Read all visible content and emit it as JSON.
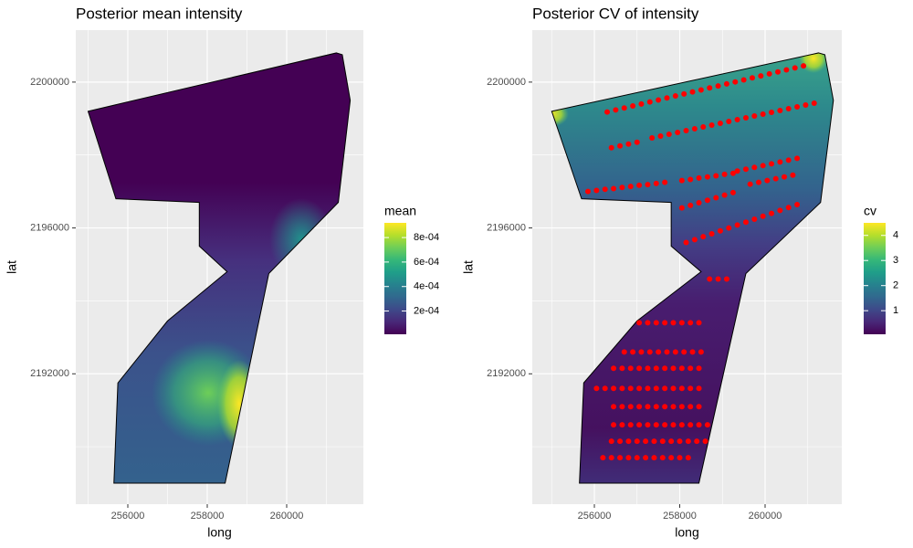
{
  "chart_data": [
    {
      "type": "map",
      "title": "Posterior mean intensity",
      "xlabel": "long",
      "ylabel": "lat",
      "xlim": [
        254690,
        261931
      ],
      "ylim": [
        2188425,
        2201425
      ],
      "xticks": [
        256000,
        258000,
        260000
      ],
      "yticks": [
        2192000,
        2196000,
        2200000
      ],
      "grid": true,
      "boundary": {
        "x": [
          255000,
          261250,
          261400,
          261600,
          261300,
          259550,
          258450,
          255650,
          255750,
          257000,
          258500,
          257800,
          257800,
          255700
        ],
        "y": [
          2199200,
          2200800,
          2200750,
          2199500,
          2196700,
          2194750,
          2189000,
          2189000,
          2191750,
          2193450,
          2194800,
          2195500,
          2196700,
          2196800
        ]
      },
      "legend": {
        "title": "mean",
        "lim": [
          1e-05,
          0.00092
        ],
        "ticks": [
          {
            "value": 0.0002,
            "label": "2e-04"
          },
          {
            "value": 0.0004,
            "label": "4e-04"
          },
          {
            "value": 0.0006,
            "label": "6e-04"
          },
          {
            "value": 0.0008,
            "label": "8e-04"
          }
        ],
        "colormap": [
          "#440154",
          "#482878",
          "#3e4989",
          "#31688e",
          "#26828e",
          "#1f9e89",
          "#35b779",
          "#6ece58",
          "#b5de2b",
          "#fde725"
        ]
      }
    },
    {
      "type": "map",
      "title": "Posterior CV of intensity",
      "xlabel": "long",
      "ylabel": "lat",
      "xlim": [
        254545,
        261797
      ],
      "ylim": [
        2188425,
        2201425
      ],
      "xticks": [
        256000,
        258000,
        260000
      ],
      "yticks": [
        2192000,
        2196000,
        2200000
      ],
      "grid": true,
      "boundary": {
        "x": [
          255000,
          261250,
          261400,
          261600,
          261300,
          259550,
          258450,
          255650,
          255750,
          257000,
          258500,
          257800,
          257800,
          255700
        ],
        "y": [
          2199200,
          2200800,
          2200750,
          2199500,
          2196700,
          2194750,
          2189000,
          2189000,
          2191750,
          2193450,
          2194800,
          2195500,
          2196700,
          2196800
        ]
      },
      "points": {
        "color": "#ff0000",
        "x": [
          256300,
          256500,
          256700,
          256900,
          257100,
          257300,
          257500,
          257700,
          257900,
          258100,
          258300,
          258500,
          258700,
          258900,
          259100,
          259300,
          259500,
          259700,
          259900,
          260100,
          260300,
          260500,
          260700,
          260900,
          256400,
          256600,
          256800,
          257000,
          257350,
          257550,
          257750,
          257950,
          258150,
          258350,
          258550,
          258750,
          258950,
          259150,
          259350,
          259550,
          259750,
          259950,
          260150,
          260350,
          260550,
          260750,
          260950,
          261150,
          255850,
          256050,
          256250,
          256450,
          256650,
          256850,
          257050,
          257250,
          257450,
          257650,
          258050,
          258250,
          258450,
          258650,
          258850,
          259050,
          259250,
          259350,
          259550,
          259750,
          259950,
          260150,
          260350,
          260550,
          260750,
          258050,
          258250,
          258450,
          258650,
          258850,
          259050,
          259250,
          259650,
          259850,
          260050,
          260250,
          260450,
          260650,
          258150,
          258350,
          258550,
          258750,
          258950,
          259150,
          259350,
          259550,
          259750,
          259950,
          260150,
          260350,
          260550,
          260750,
          258700,
          258900,
          259100,
          257050,
          257250,
          257450,
          257650,
          257850,
          258050,
          258250,
          258450,
          256700,
          256900,
          257100,
          257300,
          257500,
          257700,
          257900,
          258100,
          258300,
          258500,
          256450,
          256650,
          256850,
          257050,
          257250,
          257450,
          257650,
          257850,
          258050,
          258250,
          258450,
          256050,
          256250,
          256450,
          256650,
          256850,
          257050,
          257250,
          257450,
          257650,
          257850,
          258050,
          258250,
          258450,
          256450,
          256650,
          256850,
          257050,
          257250,
          257450,
          257650,
          257850,
          258050,
          258250,
          258450,
          256450,
          256650,
          256850,
          257050,
          257250,
          257450,
          257650,
          257850,
          258050,
          258250,
          258450,
          258650,
          256400,
          256600,
          256800,
          257000,
          257200,
          257400,
          257600,
          257800,
          258000,
          258200,
          258400,
          258600,
          256200,
          256400,
          256600,
          256800,
          257000,
          257200,
          257400,
          257600,
          257800,
          258000,
          258200
        ],
        "y": [
          2199180,
          2199235,
          2199290,
          2199345,
          2199400,
          2199455,
          2199510,
          2199565,
          2199620,
          2199675,
          2199730,
          2199785,
          2199840,
          2199895,
          2199950,
          2200005,
          2200060,
          2200115,
          2200170,
          2200225,
          2200280,
          2200335,
          2200390,
          2200445,
          2198200,
          2198250,
          2198300,
          2198350,
          2198470,
          2198520,
          2198570,
          2198620,
          2198670,
          2198720,
          2198770,
          2198820,
          2198870,
          2198920,
          2198970,
          2199020,
          2199070,
          2199120,
          2199170,
          2199220,
          2199270,
          2199320,
          2199370,
          2199420,
          2197000,
          2197030,
          2197060,
          2197080,
          2197110,
          2197140,
          2197170,
          2197190,
          2197220,
          2197250,
          2197300,
          2197330,
          2197370,
          2197400,
          2197430,
          2197470,
          2197500,
          2197560,
          2197610,
          2197660,
          2197710,
          2197760,
          2197810,
          2197860,
          2197910,
          2196550,
          2196620,
          2196690,
          2196760,
          2196830,
          2196900,
          2196970,
          2197200,
          2197250,
          2197300,
          2197350,
          2197400,
          2197450,
          2195600,
          2195680,
          2195760,
          2195840,
          2195920,
          2196000,
          2196080,
          2196160,
          2196240,
          2196320,
          2196400,
          2196480,
          2196560,
          2196640,
          2194600,
          2194600,
          2194600,
          2193400,
          2193400,
          2193400,
          2193400,
          2193400,
          2193400,
          2193400,
          2193400,
          2192600,
          2192600,
          2192600,
          2192600,
          2192600,
          2192600,
          2192600,
          2192600,
          2192600,
          2192600,
          2192150,
          2192150,
          2192150,
          2192150,
          2192150,
          2192150,
          2192150,
          2192150,
          2192150,
          2192150,
          2192150,
          2191600,
          2191600,
          2191600,
          2191600,
          2191600,
          2191600,
          2191600,
          2191600,
          2191600,
          2191600,
          2191600,
          2191600,
          2191600,
          2191100,
          2191100,
          2191100,
          2191100,
          2191100,
          2191100,
          2191100,
          2191100,
          2191100,
          2191100,
          2191100,
          2190600,
          2190600,
          2190600,
          2190600,
          2190600,
          2190600,
          2190600,
          2190600,
          2190600,
          2190600,
          2190600,
          2190600,
          2190150,
          2190150,
          2190150,
          2190150,
          2190150,
          2190150,
          2190150,
          2190150,
          2190150,
          2190150,
          2190150,
          2190150,
          2189700,
          2189700,
          2189700,
          2189700,
          2189700,
          2189700,
          2189700,
          2189700,
          2189700,
          2189700,
          2189700
        ]
      },
      "legend": {
        "title": "cv",
        "lim": [
          0.06,
          4.5
        ],
        "ticks": [
          1,
          2,
          3,
          4
        ],
        "colormap": [
          "#440154",
          "#482878",
          "#3e4989",
          "#31688e",
          "#26828e",
          "#1f9e89",
          "#35b779",
          "#6ece58",
          "#b5de2b",
          "#fde725"
        ]
      }
    }
  ]
}
